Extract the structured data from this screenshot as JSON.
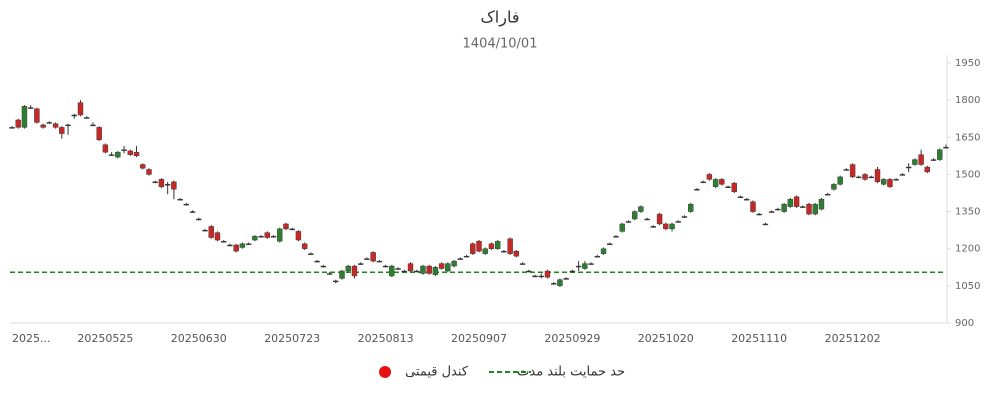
{
  "chart_data": {
    "type": "candlestick",
    "title": "فاراک",
    "subtitle": "1404/10/01",
    "categories": [
      "2025...",
      null,
      null,
      null,
      null,
      null,
      null,
      null,
      null,
      null,
      null,
      null,
      null,
      null,
      null,
      "20250525",
      null,
      null,
      null,
      null,
      null,
      null,
      null,
      null,
      null,
      null,
      null,
      null,
      null,
      null,
      "20250630",
      null,
      null,
      null,
      null,
      null,
      null,
      null,
      null,
      null,
      null,
      null,
      null,
      null,
      null,
      "20250723",
      null,
      null,
      null,
      null,
      null,
      null,
      null,
      null,
      null,
      null,
      null,
      null,
      null,
      null,
      "20250813",
      null,
      null,
      null,
      null,
      null,
      null,
      null,
      null,
      null,
      null,
      null,
      null,
      null,
      null,
      "20250907",
      null,
      null,
      null,
      null,
      null,
      null,
      null,
      null,
      null,
      null,
      null,
      null,
      null,
      null,
      "20250929",
      null,
      null,
      null,
      null,
      null,
      null,
      null,
      null,
      null,
      null,
      null,
      null,
      null,
      null,
      "20251020",
      null,
      null,
      null,
      null,
      null,
      null,
      null,
      null,
      null,
      null,
      null,
      null,
      null,
      null,
      "20251110",
      null,
      null,
      null,
      null,
      null,
      null,
      null,
      null,
      null,
      null,
      null,
      null,
      null,
      null,
      "20251202",
      null,
      null,
      null,
      null,
      null,
      null,
      null,
      null,
      null,
      null,
      null,
      null,
      null,
      null,
      null
    ],
    "series": [
      {
        "name": "کندل قیمتی",
        "color": "#e81010",
        "up_color": "#2e7d32",
        "down_color": "#c62828",
        "open": [
          1690,
          1720,
          1690,
          1770,
          1765,
          1700,
          1710,
          1705,
          1690,
          1700,
          1740,
          1790,
          1730,
          1700,
          1690,
          1620,
          1580,
          1570,
          1600,
          1595,
          1590,
          1540,
          1520,
          1470,
          1480,
          1460,
          1470,
          1400,
          1380,
          1350,
          1320,
          1275,
          1290,
          1265,
          1230,
          1215,
          1215,
          1205,
          1220,
          1235,
          1250,
          1265,
          1250,
          1230,
          1300,
          1280,
          1270,
          1220,
          1180,
          1150,
          1130,
          1100,
          1070,
          1080,
          1110,
          1130,
          1140,
          1160,
          1185,
          1150,
          1130,
          1090,
          1120,
          1110,
          1140,
          1110,
          1100,
          1130,
          1095,
          1140,
          1110,
          1130,
          1160,
          1170,
          1220,
          1230,
          1180,
          1220,
          1200,
          1190,
          1240,
          1190,
          1140,
          1110,
          1090,
          1090,
          1110,
          1060,
          1050,
          1080,
          1110,
          1130,
          1120,
          1140,
          1170,
          1180,
          1220,
          1250,
          1270,
          1310,
          1320,
          1350,
          1320,
          1290,
          1340,
          1300,
          1280,
          1310,
          1330,
          1350,
          1440,
          1470,
          1500,
          1450,
          1480,
          1450,
          1465,
          1410,
          1400,
          1390,
          1340,
          1300,
          1350,
          1360,
          1350,
          1370,
          1410,
          1370,
          1380,
          1340,
          1360,
          1420,
          1440,
          1460,
          1520,
          1540,
          1490,
          1500,
          1490,
          1520,
          1460,
          1480,
          1480,
          1500,
          1530,
          1540,
          1580,
          1530,
          1560,
          1560,
          1610
        ],
        "high": [
          1695,
          1725,
          1780,
          1780,
          1770,
          1705,
          1715,
          1710,
          1695,
          1705,
          1745,
          1800,
          1735,
          1710,
          1695,
          1625,
          1590,
          1595,
          1615,
          1600,
          1615,
          1545,
          1525,
          1475,
          1485,
          1470,
          1475,
          1405,
          1385,
          1355,
          1325,
          1280,
          1295,
          1270,
          1235,
          1220,
          1220,
          1225,
          1225,
          1255,
          1255,
          1270,
          1255,
          1285,
          1305,
          1285,
          1275,
          1225,
          1185,
          1155,
          1135,
          1105,
          1075,
          1115,
          1135,
          1135,
          1145,
          1165,
          1190,
          1155,
          1135,
          1135,
          1125,
          1115,
          1145,
          1115,
          1135,
          1135,
          1130,
          1145,
          1145,
          1155,
          1165,
          1175,
          1225,
          1235,
          1205,
          1225,
          1235,
          1195,
          1245,
          1195,
          1145,
          1115,
          1095,
          1100,
          1115,
          1065,
          1080,
          1085,
          1115,
          1150,
          1150,
          1145,
          1175,
          1205,
          1225,
          1255,
          1305,
          1315,
          1355,
          1375,
          1325,
          1295,
          1345,
          1305,
          1305,
          1315,
          1335,
          1385,
          1445,
          1475,
          1505,
          1485,
          1485,
          1455,
          1470,
          1415,
          1405,
          1395,
          1345,
          1305,
          1355,
          1365,
          1385,
          1405,
          1415,
          1375,
          1385,
          1385,
          1405,
          1425,
          1465,
          1495,
          1525,
          1545,
          1495,
          1505,
          1495,
          1530,
          1485,
          1485,
          1485,
          1505,
          1545,
          1565,
          1600,
          1535,
          1565,
          1605,
          1620
        ],
        "low": [
          1685,
          1685,
          1685,
          1765,
          1705,
          1685,
          1705,
          1685,
          1645,
          1660,
          1725,
          1735,
          1725,
          1695,
          1635,
          1585,
          1575,
          1565,
          1585,
          1575,
          1570,
          1520,
          1495,
          1465,
          1445,
          1420,
          1400,
          1395,
          1375,
          1345,
          1315,
          1270,
          1240,
          1230,
          1225,
          1210,
          1185,
          1200,
          1215,
          1230,
          1245,
          1240,
          1245,
          1225,
          1275,
          1275,
          1230,
          1195,
          1175,
          1145,
          1125,
          1095,
          1060,
          1075,
          1105,
          1080,
          1135,
          1155,
          1145,
          1145,
          1125,
          1085,
          1115,
          1105,
          1105,
          1105,
          1095,
          1095,
          1090,
          1115,
          1105,
          1125,
          1155,
          1165,
          1175,
          1185,
          1175,
          1195,
          1195,
          1185,
          1175,
          1165,
          1135,
          1105,
          1085,
          1080,
          1080,
          1055,
          1045,
          1075,
          1105,
          1110,
          1115,
          1135,
          1165,
          1175,
          1215,
          1245,
          1265,
          1305,
          1315,
          1345,
          1315,
          1285,
          1295,
          1275,
          1270,
          1305,
          1325,
          1345,
          1435,
          1465,
          1475,
          1445,
          1455,
          1445,
          1425,
          1405,
          1395,
          1345,
          1335,
          1295,
          1345,
          1355,
          1345,
          1365,
          1365,
          1365,
          1335,
          1335,
          1355,
          1415,
          1435,
          1455,
          1515,
          1485,
          1485,
          1475,
          1485,
          1465,
          1455,
          1445,
          1475,
          1495,
          1510,
          1535,
          1535,
          1505,
          1555,
          1555,
          1605
        ],
        "close": [
          1690,
          1690,
          1775,
          1770,
          1710,
          1690,
          1710,
          1690,
          1665,
          1700,
          1740,
          1740,
          1730,
          1700,
          1640,
          1590,
          1580,
          1590,
          1600,
          1580,
          1575,
          1525,
          1500,
          1470,
          1450,
          1460,
          1440,
          1400,
          1380,
          1350,
          1320,
          1275,
          1245,
          1235,
          1230,
          1215,
          1190,
          1220,
          1220,
          1250,
          1250,
          1245,
          1250,
          1280,
          1280,
          1280,
          1235,
          1200,
          1180,
          1150,
          1130,
          1100,
          1070,
          1110,
          1130,
          1090,
          1140,
          1160,
          1150,
          1150,
          1130,
          1130,
          1120,
          1110,
          1110,
          1110,
          1130,
          1100,
          1125,
          1120,
          1140,
          1150,
          1160,
          1170,
          1180,
          1190,
          1200,
          1200,
          1230,
          1190,
          1180,
          1170,
          1140,
          1110,
          1090,
          1090,
          1085,
          1060,
          1075,
          1080,
          1110,
          1130,
          1140,
          1140,
          1170,
          1200,
          1220,
          1250,
          1300,
          1310,
          1350,
          1370,
          1320,
          1290,
          1300,
          1280,
          1300,
          1310,
          1330,
          1380,
          1440,
          1470,
          1480,
          1480,
          1460,
          1450,
          1430,
          1410,
          1400,
          1350,
          1340,
          1300,
          1350,
          1360,
          1380,
          1400,
          1370,
          1370,
          1340,
          1380,
          1400,
          1420,
          1460,
          1490,
          1520,
          1490,
          1490,
          1480,
          1490,
          1470,
          1480,
          1450,
          1480,
          1500,
          1530,
          1560,
          1540,
          1510,
          1560,
          1600,
          1610
        ]
      }
    ],
    "support": {
      "name": "حد حمایت بلند مدت",
      "value": 1105,
      "color": "#1a8a1a"
    },
    "ylim": [
      900,
      1950
    ],
    "yticks": [
      900,
      1050,
      1200,
      1350,
      1500,
      1650,
      1800,
      1950
    ]
  }
}
